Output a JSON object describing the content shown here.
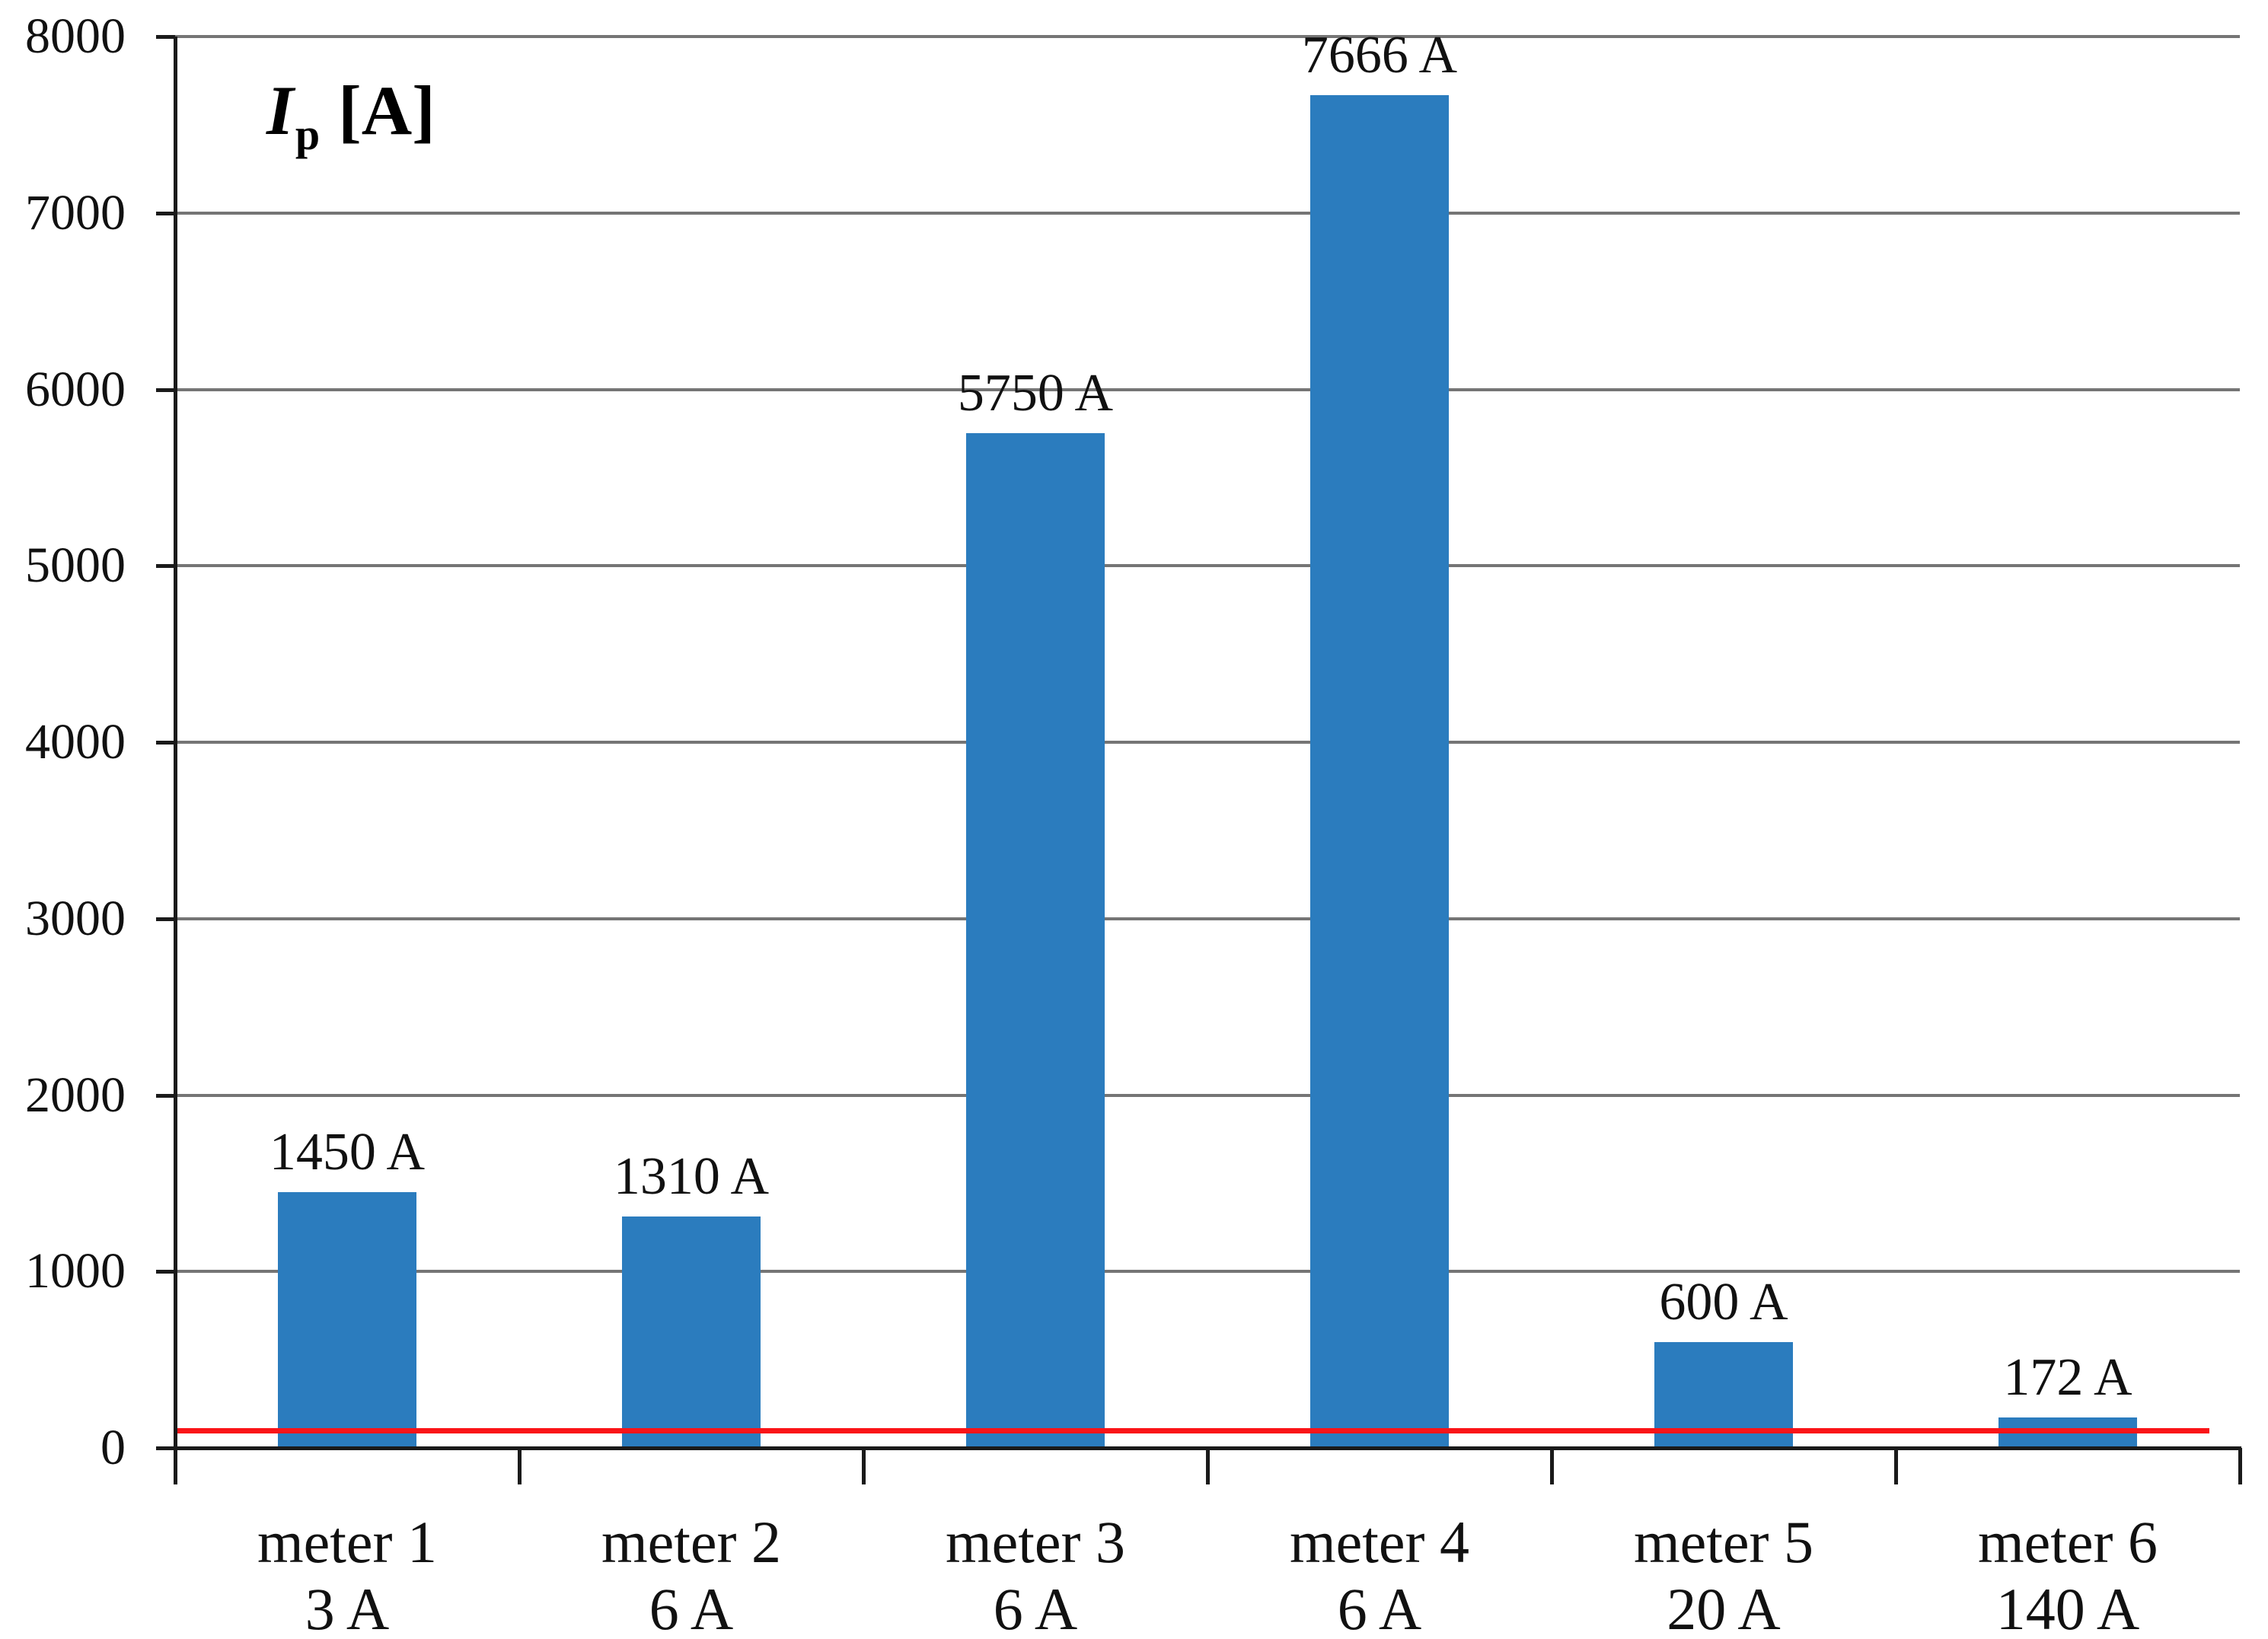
{
  "chart_data": {
    "type": "bar",
    "axis_title": {
      "symbol": "I",
      "subscript": "p",
      "unit": "[A]"
    },
    "ylim": [
      0,
      8000
    ],
    "ytick_step": 1000,
    "yticks": [
      0,
      1000,
      2000,
      3000,
      4000,
      5000,
      6000,
      7000,
      8000
    ],
    "grid": "horizontal",
    "legend": "none",
    "categories": [
      {
        "name": "meter 1",
        "rating": "3 A",
        "value": 1450,
        "value_label": "1450 A"
      },
      {
        "name": "meter 2",
        "rating": "6 A",
        "value": 1310,
        "value_label": "1310 A"
      },
      {
        "name": "meter 3",
        "rating": "6 A",
        "value": 5750,
        "value_label": "5750 A"
      },
      {
        "name": "meter 4",
        "rating": "6 A",
        "value": 7666,
        "value_label": "7666 A"
      },
      {
        "name": "meter 5",
        "rating": "20 A",
        "value": 600,
        "value_label": "600 A"
      },
      {
        "name": "meter 6",
        "rating": "140 A",
        "value": 172,
        "value_label": "172 A"
      }
    ],
    "limit_line": {
      "value": 100,
      "color": "#FA1418"
    },
    "colors": {
      "bar": "#2B7CBE",
      "gridline": "#757575",
      "axis": "#1A1A1A",
      "background": "#FFFFFF"
    }
  }
}
